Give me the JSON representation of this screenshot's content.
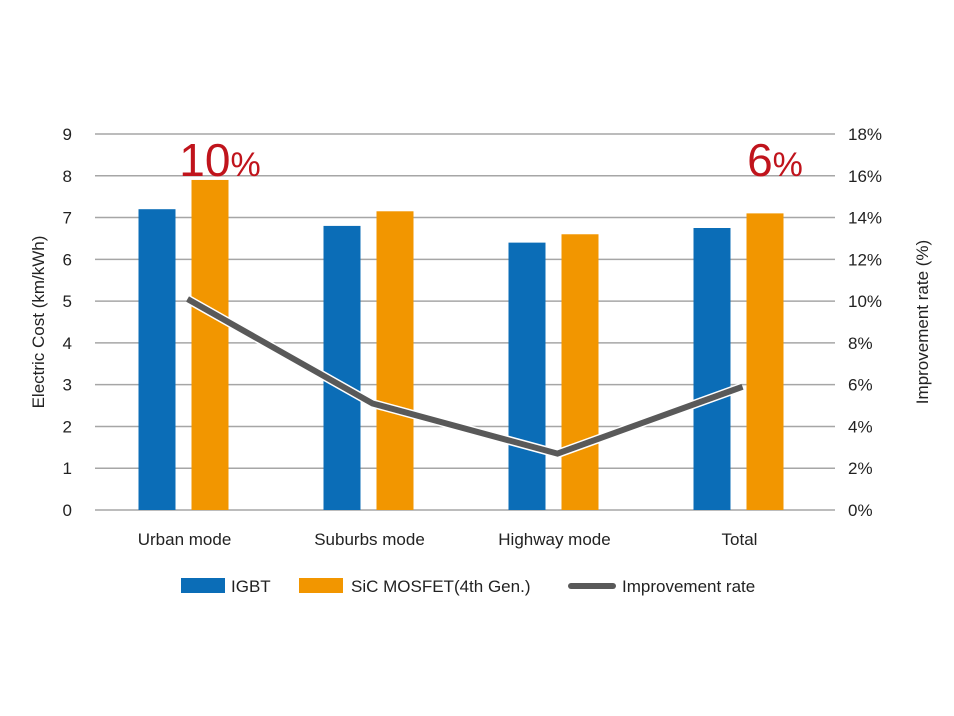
{
  "chart_data": {
    "type": "bar",
    "categories": [
      "Urban mode",
      "Suburbs mode",
      "Highway mode",
      "Total"
    ],
    "series": [
      {
        "name": "IGBT",
        "type": "bar",
        "axis": "left",
        "color": "#0b6db7",
        "values": [
          7.2,
          6.8,
          6.4,
          6.75
        ]
      },
      {
        "name": "SiC MOSFET(4th Gen.)",
        "type": "bar",
        "axis": "left",
        "color": "#f29600",
        "values": [
          7.9,
          7.15,
          6.6,
          7.1
        ]
      },
      {
        "name": "Improvement rate",
        "type": "line",
        "axis": "right",
        "color": "#595959",
        "values": [
          10.1,
          5.1,
          2.7,
          5.9
        ]
      }
    ],
    "ylabel": "Electric Cost (km/kWh)",
    "ylabel_right": "Improvement rate (%)",
    "ylim": [
      0,
      9
    ],
    "ylim_right": [
      0,
      18
    ],
    "yticks": [
      "0",
      "1",
      "2",
      "3",
      "4",
      "5",
      "6",
      "7",
      "8",
      "9"
    ],
    "yticks_right": [
      "0%",
      "2%",
      "4%",
      "6%",
      "8%",
      "10%",
      "12%",
      "14%",
      "16%",
      "18%"
    ],
    "grid": true,
    "legend_position": "bottom",
    "annotations": [
      {
        "category": "Urban mode",
        "number": "10",
        "unit": "%"
      },
      {
        "category": "Total",
        "number": "6",
        "unit": "%"
      }
    ]
  }
}
